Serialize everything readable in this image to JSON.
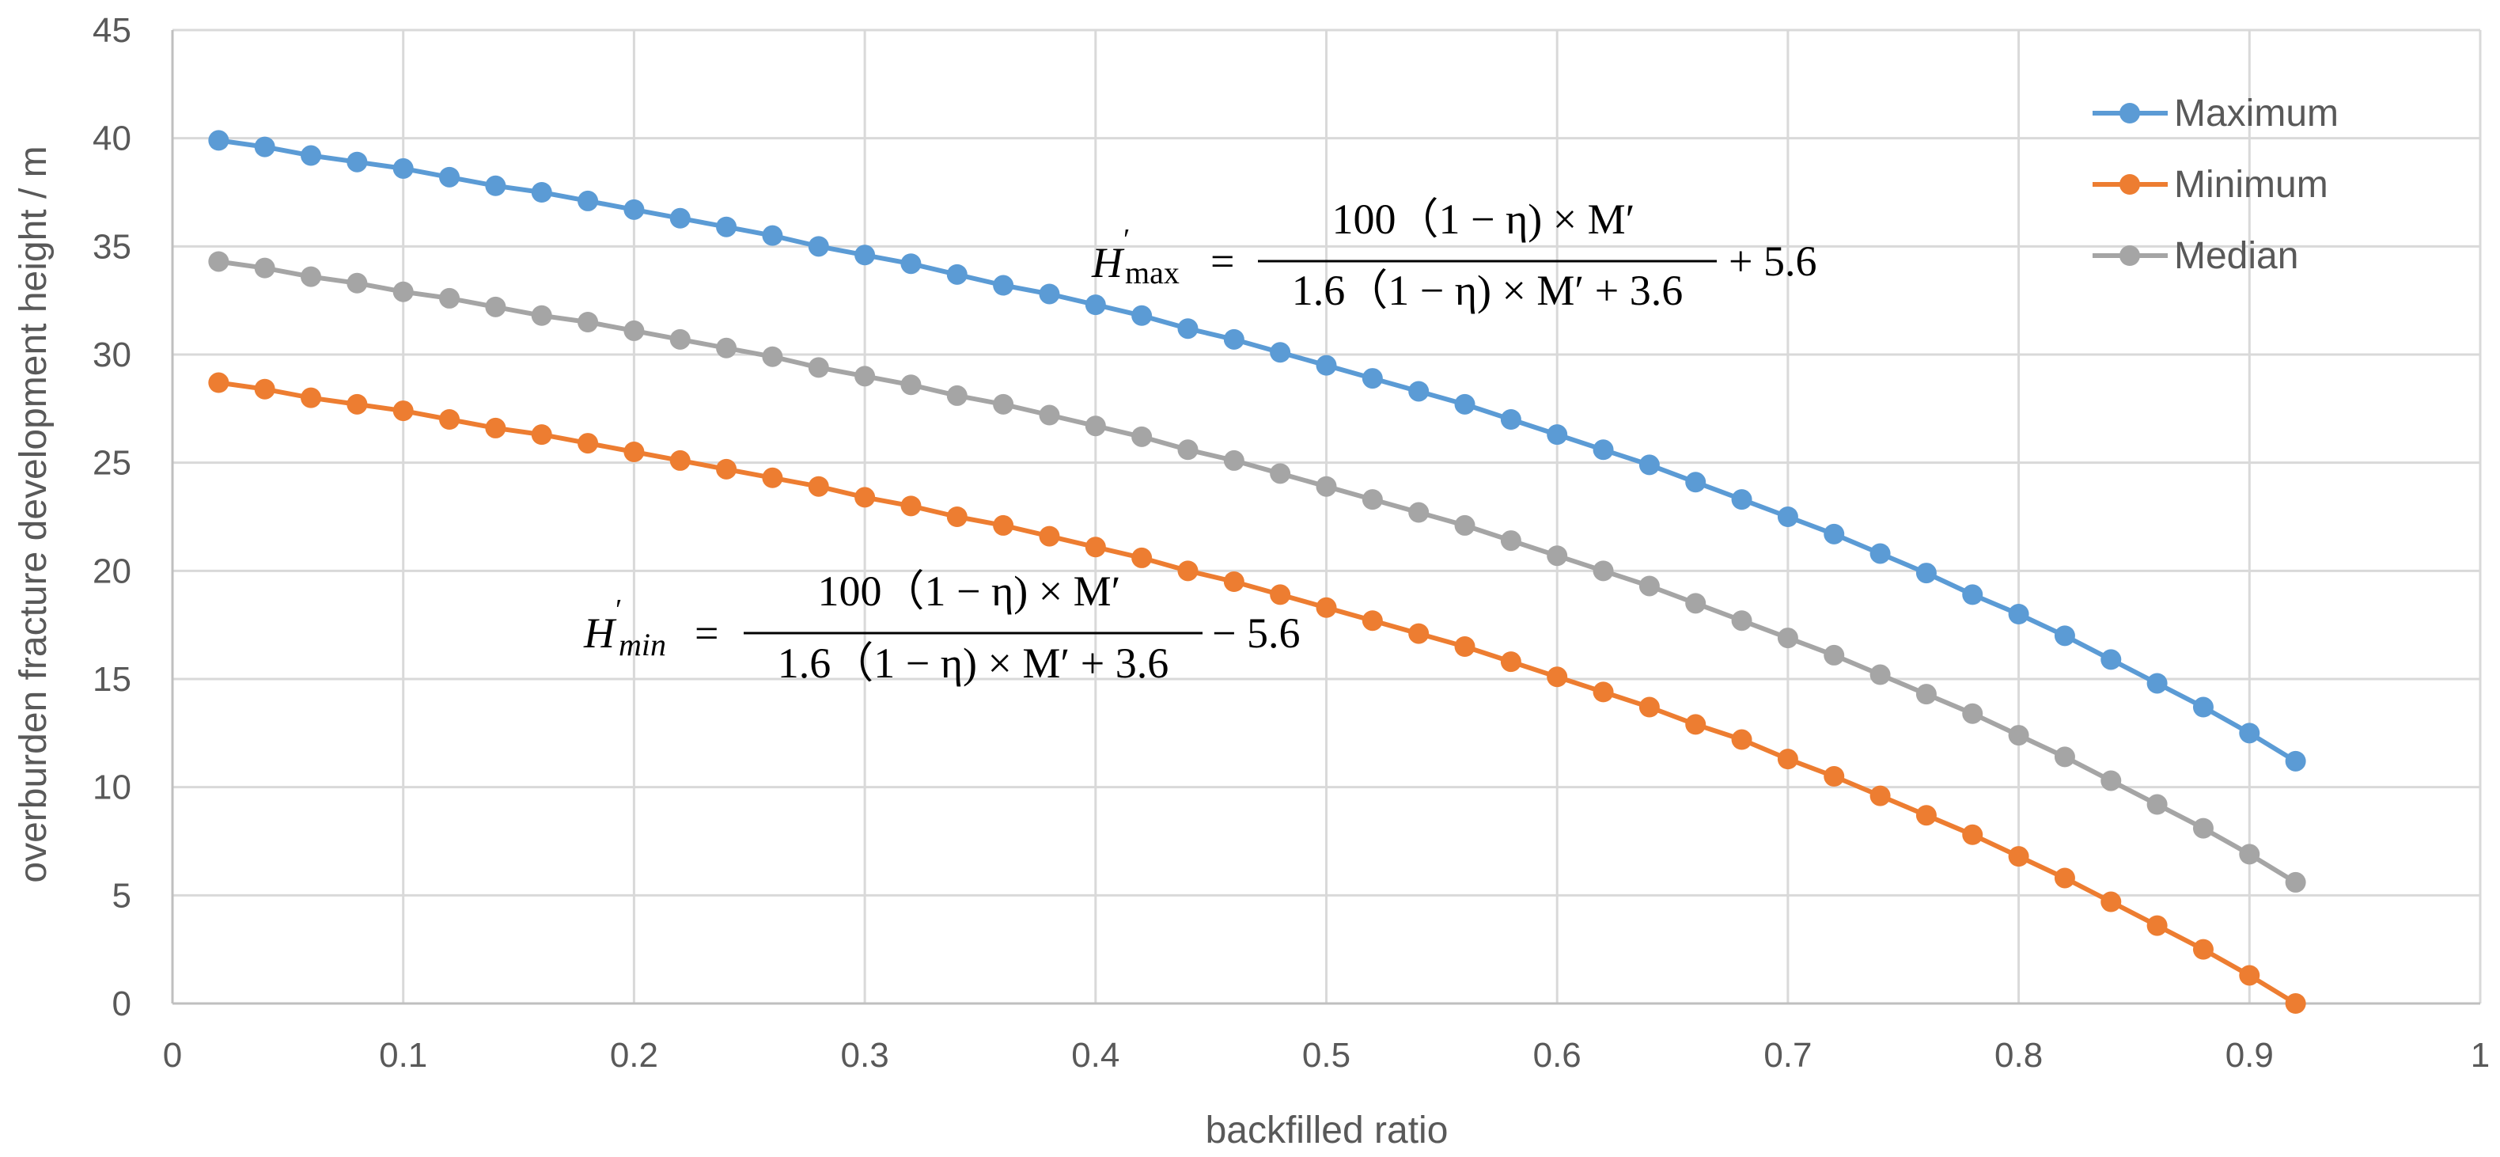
{
  "chart_data": {
    "type": "line",
    "title": "",
    "xlabel": "backfilled ratio",
    "ylabel": "overburden fracture development height / m",
    "xlim": [
      0,
      1
    ],
    "ylim": [
      0,
      45
    ],
    "xticks": [
      0,
      0.1,
      0.2,
      0.3,
      0.4,
      0.5,
      0.6,
      0.7,
      0.8,
      0.9,
      1
    ],
    "yticks": [
      0,
      5,
      10,
      15,
      20,
      25,
      30,
      35,
      40,
      45
    ],
    "xtick_labels": [
      "0",
      "0.1",
      "0.2",
      "0.3",
      "0.4",
      "0.5",
      "0.6",
      "0.7",
      "0.8",
      "0.9",
      "1"
    ],
    "ytick_labels": [
      "0",
      "5",
      "10",
      "15",
      "20",
      "25",
      "30",
      "35",
      "40",
      "45"
    ],
    "grid": true,
    "legend_position": "top-right",
    "x": [
      0.02,
      0.04,
      0.06,
      0.08,
      0.1,
      0.12,
      0.14,
      0.16,
      0.18,
      0.2,
      0.22,
      0.24,
      0.26,
      0.28,
      0.3,
      0.32,
      0.34,
      0.36,
      0.38,
      0.4,
      0.42,
      0.44,
      0.46,
      0.48,
      0.5,
      0.52,
      0.54,
      0.56,
      0.58,
      0.6,
      0.62,
      0.64,
      0.66,
      0.68,
      0.7,
      0.72,
      0.74,
      0.76,
      0.78,
      0.8,
      0.82,
      0.84,
      0.86,
      0.88,
      0.9,
      0.92
    ],
    "series": [
      {
        "name": "Maximum",
        "color": "#5B9BD5",
        "values": [
          39.9,
          39.6,
          39.2,
          38.9,
          38.6,
          38.2,
          37.8,
          37.5,
          37.1,
          36.7,
          36.3,
          35.9,
          35.5,
          35.0,
          34.6,
          34.2,
          33.7,
          33.2,
          32.8,
          32.3,
          31.8,
          31.2,
          30.7,
          30.1,
          29.5,
          28.9,
          28.3,
          27.7,
          27.0,
          26.3,
          25.6,
          24.9,
          24.1,
          23.3,
          22.5,
          21.7,
          20.8,
          19.9,
          18.9,
          18.0,
          17.0,
          15.9,
          14.8,
          13.7,
          12.5,
          11.2
        ]
      },
      {
        "name": "Minimum",
        "color": "#ED7D31",
        "values": [
          28.7,
          28.4,
          28.0,
          27.7,
          27.4,
          27.0,
          26.6,
          26.3,
          25.9,
          25.5,
          25.1,
          24.7,
          24.3,
          23.9,
          23.4,
          23.0,
          22.5,
          22.1,
          21.6,
          21.1,
          20.6,
          20.0,
          19.5,
          18.9,
          18.3,
          17.7,
          17.1,
          16.5,
          15.8,
          15.1,
          14.4,
          13.7,
          12.9,
          12.2,
          11.3,
          10.5,
          9.6,
          8.7,
          7.8,
          6.8,
          5.8,
          4.7,
          3.6,
          2.5,
          1.3,
          0.0
        ]
      },
      {
        "name": "Median",
        "color": "#A5A5A5",
        "values": [
          34.3,
          34.0,
          33.6,
          33.3,
          32.9,
          32.6,
          32.2,
          31.8,
          31.5,
          31.1,
          30.7,
          30.3,
          29.9,
          29.4,
          29.0,
          28.6,
          28.1,
          27.7,
          27.2,
          26.7,
          26.2,
          25.6,
          25.1,
          24.5,
          23.9,
          23.3,
          22.7,
          22.1,
          21.4,
          20.7,
          20.0,
          19.3,
          18.5,
          17.7,
          16.9,
          16.1,
          15.2,
          14.3,
          13.4,
          12.4,
          11.4,
          10.3,
          9.2,
          8.1,
          6.9,
          5.6
        ]
      }
    ],
    "annotations": [
      {
        "name": "formula-max",
        "lhs": "H",
        "lhs_sup": "′",
        "lhs_sub": "max",
        "eq": "=",
        "numerator": "100（1 − η) × M′",
        "denominator": "1.6（1 − η) × M′ + 3.6",
        "tail": "+ 5.6"
      },
      {
        "name": "formula-min",
        "lhs": "H",
        "lhs_sup": "′",
        "lhs_sub": "min",
        "eq": "=",
        "numerator": "100（1 − η) × M′",
        "denominator": "1.6（1 − η) × M′ + 3.6",
        "tail": "− 5.6"
      }
    ]
  }
}
